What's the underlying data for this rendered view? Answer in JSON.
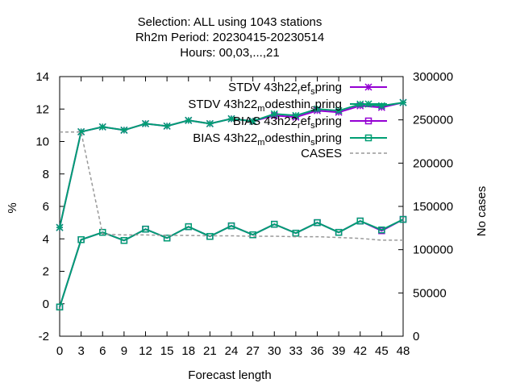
{
  "chart_data": {
    "type": "line",
    "title_lines": [
      "Selection: ALL using  1043 stations",
      "Rh2m   Period: 20230415-20230514",
      "Hours:  00,03,...,21"
    ],
    "xlabel": "Forecast length",
    "ylabel": "%",
    "y2label": "No cases",
    "xlim": [
      0,
      48
    ],
    "ylim": [
      -2,
      14
    ],
    "y2lim": [
      0,
      300000
    ],
    "x": [
      0,
      3,
      6,
      9,
      12,
      15,
      18,
      21,
      24,
      27,
      30,
      33,
      36,
      39,
      42,
      45,
      48
    ],
    "x_ticks": [
      "0",
      "3",
      "6",
      "9",
      "12",
      "15",
      "18",
      "21",
      "24",
      "27",
      "30",
      "33",
      "36",
      "39",
      "42",
      "45",
      "48"
    ],
    "y_ticks": [
      "-2",
      "0",
      "2",
      "4",
      "6",
      "8",
      "10",
      "12",
      "14"
    ],
    "y2_ticks": [
      "0",
      "50000",
      "100000",
      "150000",
      "200000",
      "250000",
      "300000"
    ],
    "grid": false,
    "legend_position": "top-right",
    "series": [
      {
        "name": "STDV 43h22_ref_spring",
        "axis": "y",
        "color": "#9400d3",
        "dash": "solid",
        "marker": "star",
        "values": [
          4.7,
          10.6,
          10.9,
          10.7,
          11.1,
          10.95,
          11.3,
          11.1,
          11.4,
          11.25,
          11.6,
          11.5,
          11.9,
          11.8,
          12.2,
          12.1,
          12.4
        ]
      },
      {
        "name": "STDV 43h22_modesthin_spring",
        "axis": "y",
        "color": "#009e73",
        "dash": "solid",
        "marker": "star",
        "values": [
          4.7,
          10.6,
          10.9,
          10.7,
          11.1,
          10.95,
          11.3,
          11.1,
          11.4,
          11.25,
          11.7,
          11.6,
          12.0,
          11.9,
          12.3,
          12.2,
          12.4
        ]
      },
      {
        "name": "BIAS 43h22_ref_spring",
        "axis": "y",
        "color": "#9400d3",
        "dash": "solid",
        "marker": "square",
        "values": [
          -0.2,
          3.95,
          4.4,
          3.9,
          4.6,
          4.05,
          4.75,
          4.15,
          4.8,
          4.25,
          4.9,
          4.35,
          5.0,
          4.4,
          5.1,
          4.5,
          5.2
        ]
      },
      {
        "name": "BIAS 43h22_modesthin_spring",
        "axis": "y",
        "color": "#009e73",
        "dash": "solid",
        "marker": "square",
        "values": [
          -0.2,
          3.95,
          4.4,
          3.9,
          4.6,
          4.05,
          4.75,
          4.15,
          4.8,
          4.25,
          4.9,
          4.35,
          5.0,
          4.4,
          5.1,
          4.55,
          5.2
        ]
      },
      {
        "name": "CASES",
        "axis": "y2",
        "color": "#999999",
        "dash": "dashed",
        "marker": "none",
        "values": [
          236000,
          236000,
          118000,
          117000,
          117000,
          116500,
          116500,
          116000,
          116000,
          115500,
          115500,
          115000,
          115000,
          114000,
          113000,
          111000,
          111000
        ]
      }
    ]
  },
  "legend_labels": [
    {
      "base": "STDV 43h22",
      "sub": "r",
      "mid": "ef",
      "sub2": "s",
      "tail": "pring"
    },
    {
      "base": "STDV 43h22",
      "sub": "m",
      "mid": "odesthin",
      "sub2": "s",
      "tail": "pring"
    },
    {
      "base": "BIAS 43h22",
      "sub": "r",
      "mid": "ef",
      "sub2": "s",
      "tail": "pring"
    },
    {
      "base": "BIAS 43h22",
      "sub": "m",
      "mid": "odesthin",
      "sub2": "s",
      "tail": "pring"
    },
    {
      "base": "CASES",
      "sub": "",
      "mid": "",
      "sub2": "",
      "tail": ""
    }
  ]
}
